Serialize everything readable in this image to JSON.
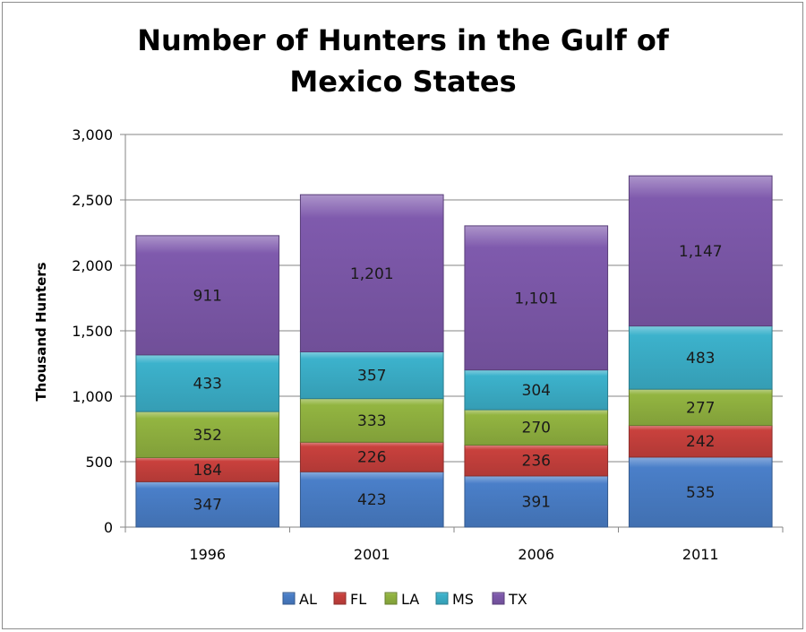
{
  "chart_data": {
    "type": "bar",
    "stacked": true,
    "title_lines": [
      "Number of Hunters in the Gulf of",
      "Mexico States"
    ],
    "ylabel": "Thousand  Hunters",
    "xlabel": "",
    "ylim": [
      0,
      3000
    ],
    "ytick_values": [
      0,
      500,
      1000,
      1500,
      2000,
      2500,
      3000
    ],
    "ytick_labels": [
      "0",
      "500",
      "1,000",
      "1,500",
      "2,000",
      "2,500",
      "3,000"
    ],
    "grid": true,
    "legend_position": "bottom",
    "categories": [
      "1996",
      "2001",
      "2006",
      "2011"
    ],
    "series": [
      {
        "name": "AL",
        "color": "#4a7fc9",
        "values": [
          347,
          423,
          391,
          535
        ],
        "labels": [
          "347",
          "423",
          "391",
          "535"
        ]
      },
      {
        "name": "FL",
        "color": "#c9413d",
        "values": [
          184,
          226,
          236,
          242
        ],
        "labels": [
          "184",
          "226",
          "236",
          "242"
        ]
      },
      {
        "name": "LA",
        "color": "#93b541",
        "values": [
          352,
          333,
          270,
          277
        ],
        "labels": [
          "352",
          "333",
          "270",
          "277"
        ]
      },
      {
        "name": "MS",
        "color": "#3cb2cc",
        "values": [
          433,
          357,
          304,
          483
        ],
        "labels": [
          "433",
          "357",
          "304",
          "483"
        ]
      },
      {
        "name": "TX",
        "color": "#7f5aad",
        "values": [
          911,
          1201,
          1101,
          1147
        ],
        "labels": [
          "911",
          "1,201",
          "1,101",
          "1,147"
        ]
      }
    ]
  }
}
